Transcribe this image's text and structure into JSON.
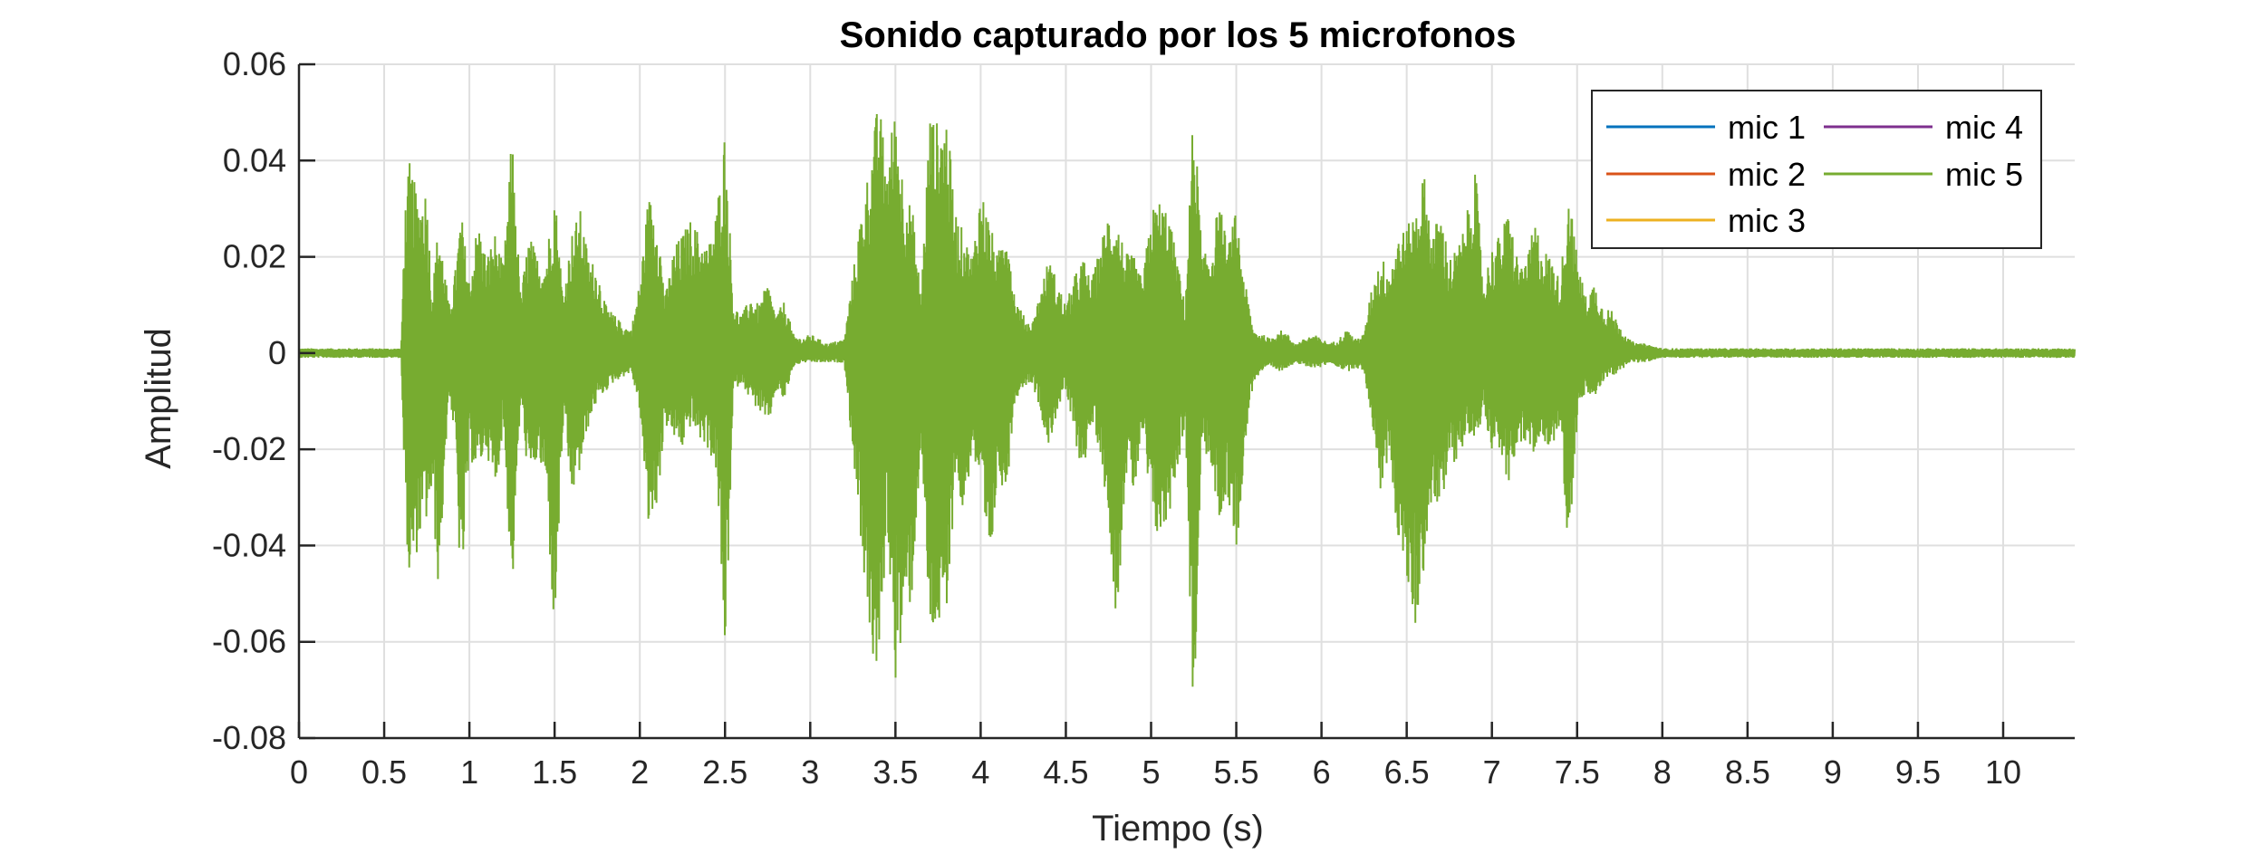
{
  "chart_data": {
    "type": "line",
    "title": "Sonido capturado por los 5 microfonos",
    "xlabel": "Tiempo (s)",
    "ylabel": "Amplitud",
    "xlim": [
      0,
      10.42
    ],
    "ylim": [
      -0.08,
      0.06
    ],
    "xticks": [
      0,
      0.5,
      1,
      1.5,
      2,
      2.5,
      3,
      3.5,
      4,
      4.5,
      5,
      5.5,
      6,
      6.5,
      7,
      7.5,
      8,
      8.5,
      9,
      9.5,
      10
    ],
    "xtick_labels": [
      "0",
      "0.5",
      "1",
      "1.5",
      "2",
      "2.5",
      "3",
      "3.5",
      "4",
      "4.5",
      "5",
      "5.5",
      "6",
      "6.5",
      "7",
      "7.5",
      "8",
      "8.5",
      "9",
      "9.5",
      "10"
    ],
    "yticks": [
      -0.08,
      -0.06,
      -0.04,
      -0.02,
      0,
      0.02,
      0.04,
      0.06
    ],
    "ytick_labels": [
      "-0.08",
      "-0.06",
      "-0.04",
      "-0.02",
      "0",
      "0.02",
      "0.04",
      "0.06"
    ],
    "grid": true,
    "legend_position": "top-right",
    "series": [
      {
        "name": "mic 1",
        "color": "#0072BD"
      },
      {
        "name": "mic 2",
        "color": "#D95319"
      },
      {
        "name": "mic 3",
        "color": "#EDB120"
      },
      {
        "name": "mic 4",
        "color": "#7E2F8E"
      },
      {
        "name": "mic 5",
        "color": "#77AC30"
      }
    ],
    "envelope": {
      "t": [
        0,
        0.6,
        0.62,
        0.65,
        0.7,
        0.75,
        0.78,
        0.82,
        0.88,
        0.92,
        0.95,
        1.0,
        1.05,
        1.1,
        1.15,
        1.2,
        1.25,
        1.3,
        1.35,
        1.4,
        1.45,
        1.5,
        1.55,
        1.6,
        1.65,
        1.7,
        1.75,
        1.8,
        1.85,
        1.9,
        1.95,
        2.0,
        2.05,
        2.1,
        2.15,
        2.2,
        2.25,
        2.3,
        2.35,
        2.4,
        2.45,
        2.5,
        2.55,
        2.6,
        2.65,
        2.7,
        2.75,
        2.8,
        2.85,
        2.9,
        2.95,
        3.0,
        3.1,
        3.2,
        3.3,
        3.35,
        3.4,
        3.45,
        3.5,
        3.55,
        3.6,
        3.65,
        3.7,
        3.75,
        3.8,
        3.85,
        3.9,
        3.95,
        4.0,
        4.05,
        4.1,
        4.15,
        4.2,
        4.25,
        4.3,
        4.35,
        4.4,
        4.45,
        4.5,
        4.55,
        4.6,
        4.65,
        4.7,
        4.75,
        4.8,
        4.85,
        4.9,
        4.95,
        5.0,
        5.05,
        5.1,
        5.15,
        5.2,
        5.25,
        5.3,
        5.35,
        5.4,
        5.45,
        5.5,
        5.55,
        5.6,
        5.65,
        5.7,
        5.75,
        5.8,
        5.85,
        5.9,
        5.95,
        6.0,
        6.05,
        6.1,
        6.15,
        6.2,
        6.25,
        6.3,
        6.35,
        6.4,
        6.45,
        6.5,
        6.55,
        6.6,
        6.65,
        6.7,
        6.75,
        6.8,
        6.85,
        6.9,
        6.95,
        7.0,
        7.05,
        7.1,
        7.15,
        7.2,
        7.25,
        7.3,
        7.35,
        7.4,
        7.45,
        7.5,
        7.55,
        7.6,
        7.65,
        7.7,
        7.75,
        7.8,
        7.85,
        7.9,
        8.0,
        10.42
      ],
      "upper": [
        0.001,
        0.001,
        0.03,
        0.04,
        0.032,
        0.035,
        0.012,
        0.028,
        0.01,
        0.018,
        0.03,
        0.015,
        0.028,
        0.02,
        0.025,
        0.018,
        0.046,
        0.012,
        0.025,
        0.02,
        0.02,
        0.035,
        0.012,
        0.025,
        0.03,
        0.02,
        0.018,
        0.01,
        0.008,
        0.006,
        0.005,
        0.015,
        0.033,
        0.03,
        0.012,
        0.022,
        0.025,
        0.028,
        0.025,
        0.022,
        0.03,
        0.047,
        0.01,
        0.008,
        0.012,
        0.01,
        0.015,
        0.008,
        0.011,
        0.004,
        0.003,
        0.004,
        0.002,
        0.003,
        0.03,
        0.04,
        0.053,
        0.04,
        0.052,
        0.035,
        0.03,
        0.012,
        0.05,
        0.048,
        0.05,
        0.03,
        0.025,
        0.02,
        0.035,
        0.028,
        0.02,
        0.03,
        0.012,
        0.008,
        0.006,
        0.013,
        0.02,
        0.015,
        0.01,
        0.016,
        0.02,
        0.015,
        0.022,
        0.03,
        0.028,
        0.021,
        0.02,
        0.015,
        0.03,
        0.032,
        0.03,
        0.02,
        0.01,
        0.053,
        0.02,
        0.022,
        0.032,
        0.022,
        0.03,
        0.015,
        0.005,
        0.004,
        0.003,
        0.005,
        0.004,
        0.002,
        0.003,
        0.004,
        0.003,
        0.002,
        0.003,
        0.005,
        0.003,
        0.004,
        0.015,
        0.02,
        0.018,
        0.025,
        0.026,
        0.03,
        0.038,
        0.025,
        0.03,
        0.02,
        0.022,
        0.028,
        0.04,
        0.015,
        0.022,
        0.025,
        0.03,
        0.02,
        0.018,
        0.028,
        0.022,
        0.02,
        0.015,
        0.035,
        0.02,
        0.012,
        0.015,
        0.01,
        0.009,
        0.006,
        0.003,
        0.002,
        0.002,
        0.001,
        0.001
      ],
      "lower": [
        -0.001,
        -0.001,
        -0.03,
        -0.05,
        -0.04,
        -0.035,
        -0.03,
        -0.05,
        -0.008,
        -0.02,
        -0.053,
        -0.022,
        -0.025,
        -0.02,
        -0.03,
        -0.015,
        -0.052,
        -0.01,
        -0.028,
        -0.022,
        -0.028,
        -0.061,
        -0.015,
        -0.03,
        -0.025,
        -0.015,
        -0.01,
        -0.008,
        -0.006,
        -0.005,
        -0.004,
        -0.012,
        -0.037,
        -0.032,
        -0.015,
        -0.018,
        -0.02,
        -0.015,
        -0.018,
        -0.02,
        -0.025,
        -0.066,
        -0.008,
        -0.006,
        -0.01,
        -0.012,
        -0.016,
        -0.008,
        -0.01,
        -0.003,
        -0.002,
        -0.002,
        -0.002,
        -0.002,
        -0.04,
        -0.06,
        -0.072,
        -0.035,
        -0.068,
        -0.06,
        -0.05,
        -0.018,
        -0.06,
        -0.058,
        -0.06,
        -0.025,
        -0.035,
        -0.02,
        -0.03,
        -0.05,
        -0.025,
        -0.03,
        -0.01,
        -0.007,
        -0.006,
        -0.012,
        -0.02,
        -0.012,
        -0.008,
        -0.018,
        -0.025,
        -0.015,
        -0.02,
        -0.035,
        -0.057,
        -0.025,
        -0.03,
        -0.017,
        -0.035,
        -0.04,
        -0.035,
        -0.025,
        -0.015,
        -0.08,
        -0.018,
        -0.025,
        -0.035,
        -0.03,
        -0.042,
        -0.02,
        -0.006,
        -0.004,
        -0.003,
        -0.004,
        -0.003,
        -0.002,
        -0.003,
        -0.003,
        -0.003,
        -0.002,
        -0.003,
        -0.004,
        -0.003,
        -0.004,
        -0.015,
        -0.03,
        -0.02,
        -0.04,
        -0.048,
        -0.058,
        -0.045,
        -0.03,
        -0.035,
        -0.02,
        -0.025,
        -0.015,
        -0.02,
        -0.012,
        -0.02,
        -0.02,
        -0.03,
        -0.018,
        -0.02,
        -0.022,
        -0.018,
        -0.02,
        -0.015,
        -0.042,
        -0.015,
        -0.008,
        -0.01,
        -0.006,
        -0.005,
        -0.004,
        -0.002,
        -0.002,
        -0.002,
        -0.001,
        -0.001
      ]
    }
  }
}
